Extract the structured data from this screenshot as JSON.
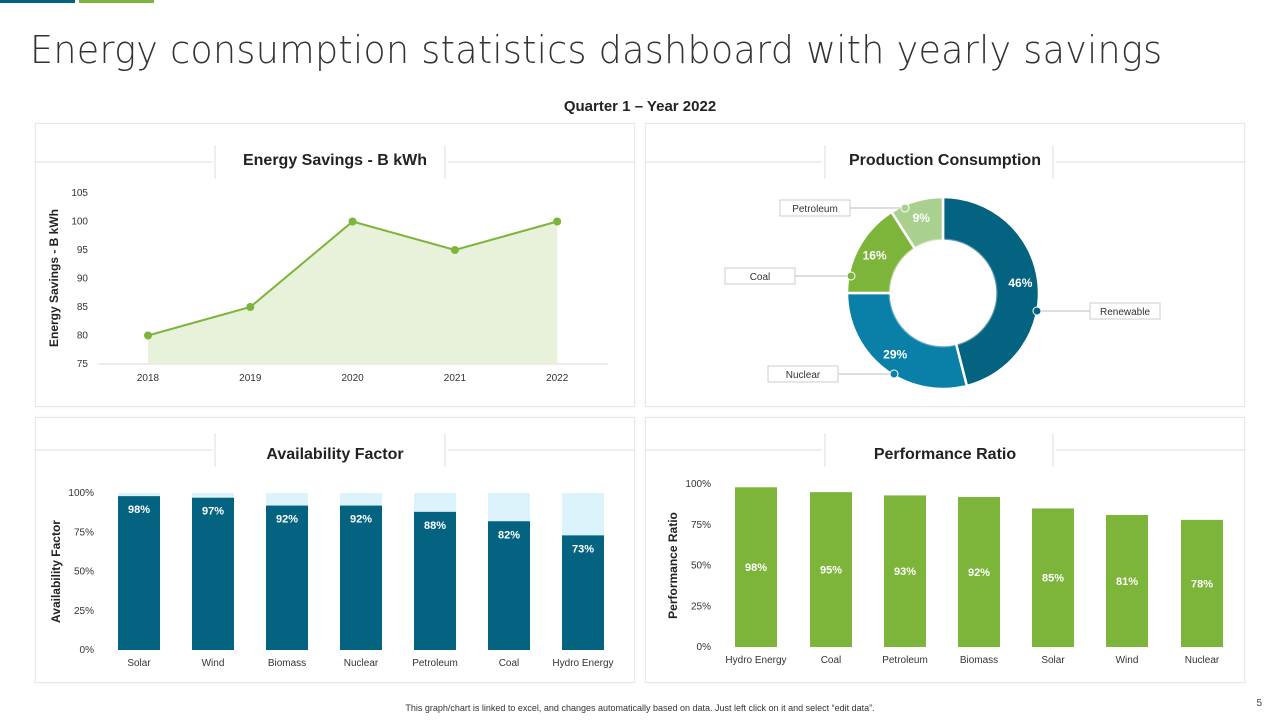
{
  "title": "Energy consumption statistics dashboard with yearly savings",
  "subtitle": "Quarter 1 – Year 2022",
  "footnote": "This graph/chart is linked to excel, and changes automatically based on data. Just left click on it and select “edit data”.",
  "page_number": "5",
  "colors": {
    "dark_teal": "#056382",
    "teal": "#0a7fa8",
    "green": "#7db43a",
    "light_green": "#a9d08e",
    "pale_green": "#e8f2da",
    "pale_blue": "#dcf3fb"
  },
  "chart_data": [
    {
      "type": "area",
      "title": "Energy Savings - B kWh",
      "ylabel": "Energy Savings - B kWh",
      "categories": [
        "2018",
        "2019",
        "2020",
        "2021",
        "2022"
      ],
      "values": [
        80,
        85,
        100,
        95,
        100
      ],
      "ylim": [
        75,
        105
      ],
      "yticks": [
        75,
        80,
        85,
        90,
        95,
        100,
        105
      ]
    },
    {
      "type": "pie",
      "title": "Production Consumption",
      "donut": true,
      "categories": [
        "Renewable",
        "Nuclear",
        "Coal",
        "Petroleum"
      ],
      "values": [
        46,
        29,
        16,
        9
      ],
      "labels": [
        "46%",
        "29%",
        "16%",
        "9%"
      ]
    },
    {
      "type": "bar",
      "stacked_background": true,
      "title": "Availability Factor",
      "ylabel": "Availability Factor",
      "categories": [
        "Solar",
        "Wind",
        "Biomass",
        "Nuclear",
        "Petroleum",
        "Coal",
        "Hydro Energy"
      ],
      "values": [
        98,
        97,
        92,
        92,
        88,
        82,
        73
      ],
      "labels": [
        "98%",
        "97%",
        "92%",
        "92%",
        "88%",
        "82%",
        "73%"
      ],
      "ylim": [
        0,
        100
      ],
      "yticks": [
        "0%",
        "25%",
        "50%",
        "75%",
        "100%"
      ]
    },
    {
      "type": "bar",
      "title": "Performance Ratio",
      "ylabel": "Performance Ratio",
      "categories": [
        "Hydro Energy",
        "Coal",
        "Petroleum",
        "Biomass",
        "Solar",
        "Wind",
        "Nuclear"
      ],
      "values": [
        98,
        95,
        93,
        92,
        85,
        81,
        78
      ],
      "labels": [
        "98%",
        "95%",
        "93%",
        "92%",
        "85%",
        "81%",
        "78%"
      ],
      "ylim": [
        0,
        100
      ],
      "yticks": [
        "0%",
        "25%",
        "50%",
        "75%",
        "100%"
      ]
    }
  ]
}
